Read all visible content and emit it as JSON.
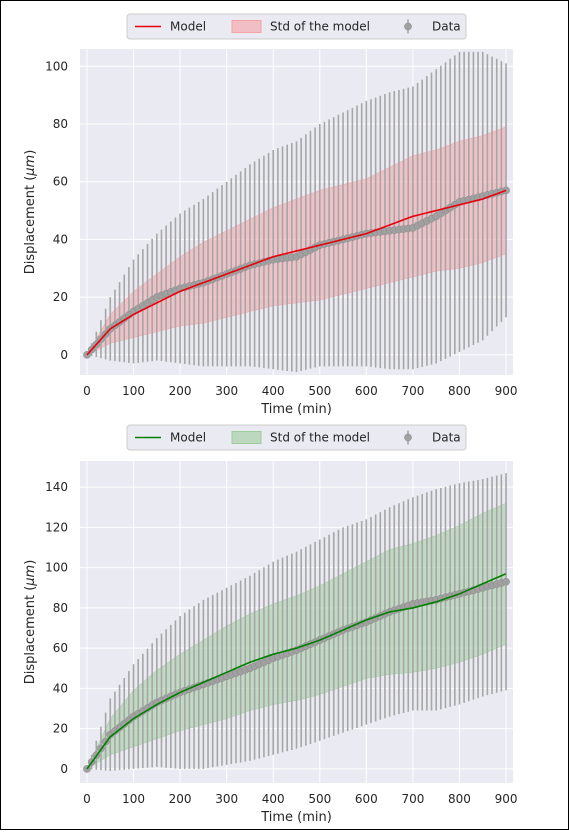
{
  "chart_data": [
    {
      "type": "line",
      "id": "top",
      "colors": {
        "model": "#e8000b",
        "band": "#f4a0a5",
        "data": "#999999"
      },
      "legend": {
        "placement": "top-center",
        "model": "Model",
        "std": "Std of the model",
        "data": "Data"
      },
      "xlabel": "Time (min)",
      "ylabel_pre": "Displacement (",
      "ylabel_unit": "μm",
      "ylabel_post": ")",
      "xlim": [
        -15,
        915
      ],
      "ylim": [
        -7,
        106
      ],
      "xticks": [
        0,
        100,
        200,
        300,
        400,
        500,
        600,
        700,
        800,
        900
      ],
      "yticks": [
        0,
        20,
        40,
        60,
        80,
        100
      ],
      "grid": true,
      "data_points": [
        [
          0,
          0
        ],
        [
          50,
          9
        ],
        [
          100,
          15
        ],
        [
          150,
          20
        ],
        [
          200,
          23
        ],
        [
          250,
          25
        ],
        [
          300,
          28
        ],
        [
          350,
          31
        ],
        [
          400,
          33
        ],
        [
          450,
          34
        ],
        [
          500,
          38
        ],
        [
          550,
          40
        ],
        [
          600,
          42
        ],
        [
          650,
          43
        ],
        [
          700,
          44
        ],
        [
          750,
          48
        ],
        [
          800,
          53
        ],
        [
          850,
          55
        ],
        [
          900,
          57
        ]
      ],
      "data_std": [
        [
          0,
          0
        ],
        [
          50,
          11
        ],
        [
          100,
          18
        ],
        [
          150,
          22
        ],
        [
          200,
          26
        ],
        [
          250,
          29
        ],
        [
          300,
          32
        ],
        [
          350,
          35
        ],
        [
          400,
          38
        ],
        [
          450,
          40
        ],
        [
          500,
          42
        ],
        [
          550,
          44
        ],
        [
          600,
          46
        ],
        [
          650,
          48
        ],
        [
          700,
          49
        ],
        [
          750,
          51
        ],
        [
          800,
          52
        ],
        [
          850,
          50
        ],
        [
          900,
          44
        ]
      ],
      "model": [
        [
          0,
          0
        ],
        [
          50,
          9
        ],
        [
          100,
          14
        ],
        [
          150,
          18
        ],
        [
          200,
          22
        ],
        [
          250,
          25
        ],
        [
          300,
          28
        ],
        [
          350,
          31
        ],
        [
          400,
          34
        ],
        [
          450,
          36
        ],
        [
          500,
          38
        ],
        [
          550,
          40
        ],
        [
          600,
          42
        ],
        [
          650,
          45
        ],
        [
          700,
          48
        ],
        [
          750,
          50
        ],
        [
          800,
          52
        ],
        [
          850,
          54
        ],
        [
          900,
          57
        ]
      ],
      "model_std": [
        [
          0,
          0
        ],
        [
          50,
          5
        ],
        [
          100,
          8
        ],
        [
          150,
          10
        ],
        [
          200,
          12
        ],
        [
          250,
          14
        ],
        [
          300,
          15
        ],
        [
          350,
          16
        ],
        [
          400,
          17
        ],
        [
          450,
          18
        ],
        [
          500,
          19
        ],
        [
          550,
          19
        ],
        [
          600,
          19
        ],
        [
          650,
          20
        ],
        [
          700,
          21
        ],
        [
          750,
          21
        ],
        [
          800,
          22
        ],
        [
          850,
          22
        ],
        [
          900,
          22
        ]
      ]
    },
    {
      "type": "line",
      "id": "bottom",
      "colors": {
        "model": "#008000",
        "band": "#9ccc9c",
        "data": "#999999"
      },
      "legend": {
        "placement": "top-center",
        "model": "Model",
        "std": "Std of the model",
        "data": "Data"
      },
      "xlabel": "Time (min)",
      "ylabel_pre": "Displacement (",
      "ylabel_unit": "μm",
      "ylabel_post": ")",
      "xlim": [
        -15,
        915
      ],
      "ylim": [
        -7,
        153
      ],
      "xticks": [
        0,
        100,
        200,
        300,
        400,
        500,
        600,
        700,
        800,
        900
      ],
      "yticks": [
        0,
        20,
        40,
        60,
        80,
        100,
        120,
        140
      ],
      "grid": true,
      "data_points": [
        [
          0,
          0
        ],
        [
          50,
          17
        ],
        [
          100,
          26
        ],
        [
          150,
          33
        ],
        [
          200,
          38
        ],
        [
          250,
          42
        ],
        [
          300,
          46
        ],
        [
          350,
          50
        ],
        [
          400,
          55
        ],
        [
          450,
          59
        ],
        [
          500,
          64
        ],
        [
          550,
          69
        ],
        [
          600,
          73
        ],
        [
          650,
          78
        ],
        [
          700,
          82
        ],
        [
          750,
          84
        ],
        [
          800,
          87
        ],
        [
          850,
          90
        ],
        [
          900,
          93
        ]
      ],
      "data_std": [
        [
          0,
          0
        ],
        [
          50,
          18
        ],
        [
          100,
          26
        ],
        [
          150,
          32
        ],
        [
          200,
          38
        ],
        [
          250,
          42
        ],
        [
          300,
          44
        ],
        [
          350,
          46
        ],
        [
          400,
          48
        ],
        [
          450,
          49
        ],
        [
          500,
          50
        ],
        [
          550,
          51
        ],
        [
          600,
          51
        ],
        [
          650,
          52
        ],
        [
          700,
          53
        ],
        [
          750,
          55
        ],
        [
          800,
          55
        ],
        [
          850,
          54
        ],
        [
          900,
          54
        ]
      ],
      "model": [
        [
          0,
          0
        ],
        [
          50,
          16
        ],
        [
          100,
          25
        ],
        [
          150,
          32
        ],
        [
          200,
          38
        ],
        [
          250,
          43
        ],
        [
          300,
          48
        ],
        [
          350,
          53
        ],
        [
          400,
          57
        ],
        [
          450,
          60
        ],
        [
          500,
          64
        ],
        [
          550,
          69
        ],
        [
          600,
          74
        ],
        [
          650,
          78
        ],
        [
          700,
          80
        ],
        [
          750,
          83
        ],
        [
          800,
          87
        ],
        [
          850,
          92
        ],
        [
          900,
          97
        ]
      ],
      "model_std": [
        [
          0,
          0
        ],
        [
          50,
          9
        ],
        [
          100,
          14
        ],
        [
          150,
          17
        ],
        [
          200,
          19
        ],
        [
          250,
          21
        ],
        [
          300,
          23
        ],
        [
          350,
          24
        ],
        [
          400,
          25
        ],
        [
          450,
          26
        ],
        [
          500,
          27
        ],
        [
          550,
          28
        ],
        [
          600,
          29
        ],
        [
          650,
          31
        ],
        [
          700,
          32
        ],
        [
          750,
          33
        ],
        [
          800,
          34
        ],
        [
          850,
          35
        ],
        [
          900,
          35
        ]
      ]
    }
  ]
}
